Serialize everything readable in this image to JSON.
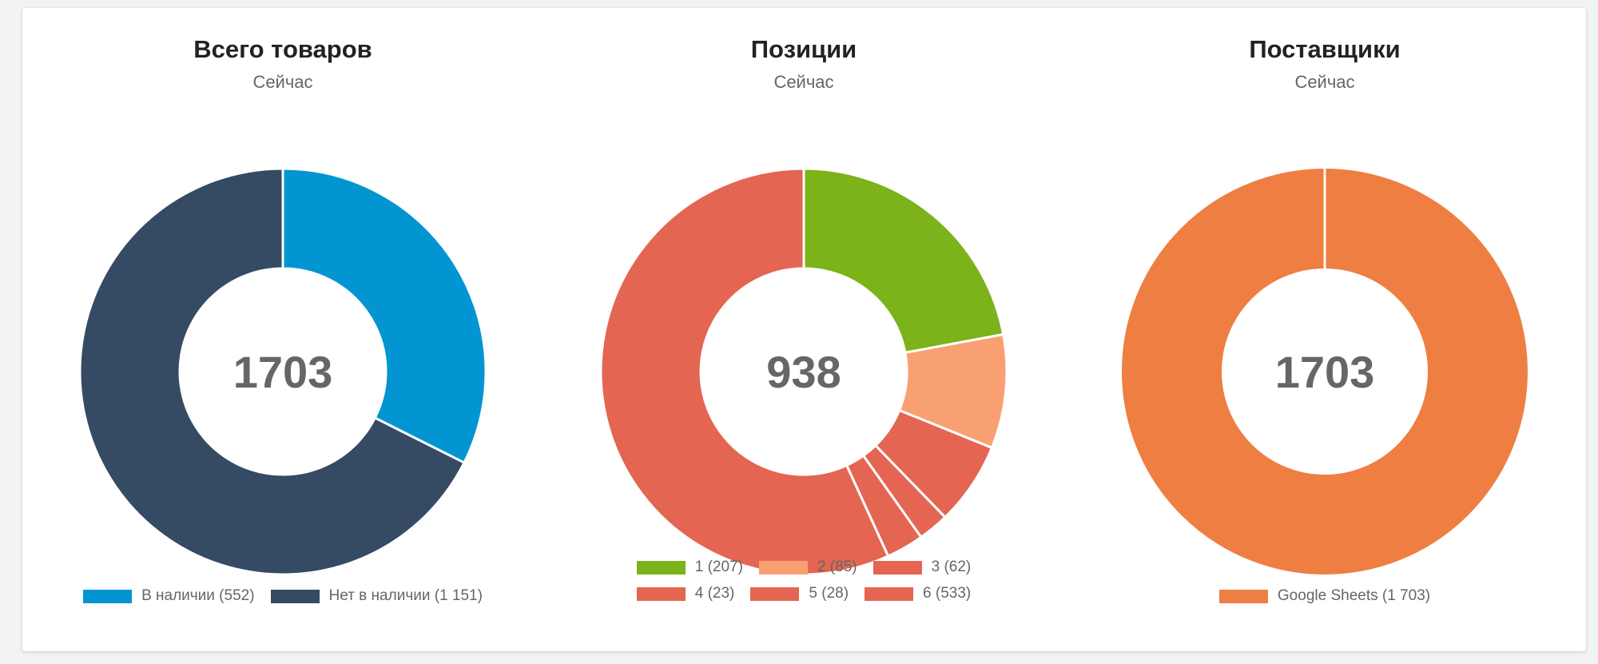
{
  "chart_data": [
    {
      "type": "pie",
      "title": "Всего товаров",
      "subtitle": "Сейчас",
      "center_label": "1703",
      "categories": [
        "В наличии (552)",
        "Нет в наличии (1 151)"
      ],
      "values": [
        552,
        1151
      ],
      "colors": [
        "#0295d2",
        "#354a63"
      ],
      "legend_rows": [
        [
          0,
          1
        ]
      ],
      "legend_position": "bottom"
    },
    {
      "type": "pie",
      "title": "Позиции",
      "subtitle": "Сейчас",
      "center_label": "938",
      "categories": [
        "1 (207)",
        "2 (85)",
        "3 (62)",
        "4 (23)",
        "5 (28)",
        "6 (533)"
      ],
      "values": [
        207,
        85,
        62,
        23,
        28,
        533
      ],
      "colors": [
        "#7cb21a",
        "#f9a073",
        "#e46552",
        "#e46552",
        "#e46552",
        "#e46552"
      ],
      "legend_rows": [
        [
          0,
          1,
          2
        ],
        [
          3,
          4,
          5
        ]
      ],
      "legend_position": "bottom"
    },
    {
      "type": "pie",
      "title": "Поставщики",
      "subtitle": "Сейчас",
      "center_label": "1703",
      "categories": [
        "Google Sheets (1 703)"
      ],
      "values": [
        1703
      ],
      "colors": [
        "#ef7e42"
      ],
      "legend_rows": [
        [
          0
        ]
      ],
      "legend_position": "bottom"
    }
  ]
}
